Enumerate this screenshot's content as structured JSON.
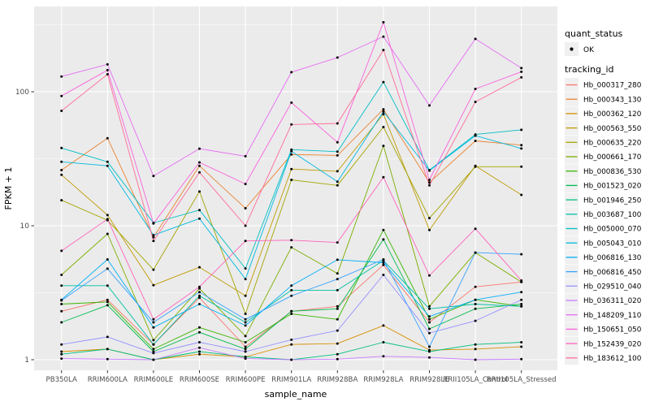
{
  "figure": {
    "kind": "ggplot-style line plot of gene expression per sample",
    "x_axis_title": "sample_name",
    "y_axis_title": "FPKM + 1"
  },
  "chart_data": {
    "type": "line",
    "title": "",
    "xlabel": "sample_name",
    "ylabel": "FPKM + 1",
    "y_scale": "log10",
    "ylim": [
      1,
      420
    ],
    "y_major_ticks": [
      1,
      10,
      100
    ],
    "y_tick_labels": [
      "1",
      "10",
      "100"
    ],
    "y_minor_ticks": [
      3.1623,
      31.623,
      316.23
    ],
    "grid": true,
    "legend_position": "right",
    "panel_bg": "#EBEBEB",
    "grid_color": "#FFFFFF",
    "axis_text_color": "#4D4D4D",
    "point_color": "#000000",
    "legend_key_bg": "#F0F0F0",
    "legend": {
      "quant_status": {
        "title": "quant_status",
        "items": [
          {
            "label": "OK",
            "marker": "black-point"
          }
        ]
      },
      "tracking_id": {
        "title": "tracking_id"
      }
    },
    "categories": [
      "PB350LA",
      "RRIM600LA",
      "RRIM600LE",
      "RRIM600SE",
      "RRIM600PE",
      "RRIM901LA",
      "RRIM928BA",
      "RRIM928LA",
      "RRIM928LE",
      "RRII105LA_Control",
      "RRII105LA_Stressed"
    ],
    "series": [
      {
        "name": "Hb_000317_280",
        "color": "#F8766D",
        "values": [
          2.3,
          2.8,
          1.3,
          2.9,
          1.25,
          2.3,
          2.5,
          5.1,
          1.9,
          3.5,
          3.8
        ]
      },
      {
        "name": "Hb_000343_130",
        "color": "#EA8331",
        "values": [
          26,
          45,
          8.2,
          28,
          13.5,
          34,
          33.5,
          74,
          21,
          43,
          40
        ]
      },
      {
        "name": "Hb_000362_120",
        "color": "#D89000",
        "values": [
          1.15,
          1.2,
          1.0,
          1.1,
          1.05,
          1.3,
          1.32,
          1.8,
          1.18,
          1.2,
          1.25
        ]
      },
      {
        "name": "Hb_000563_550",
        "color": "#C09B00",
        "values": [
          24,
          12,
          3.6,
          4.9,
          3.0,
          26.5,
          25.5,
          68,
          9.3,
          28,
          17
        ]
      },
      {
        "name": "Hb_000635_220",
        "color": "#A3A500",
        "values": [
          15.5,
          11,
          4.7,
          18,
          2.2,
          22,
          20,
          54.5,
          11.4,
          27.6,
          27.6
        ]
      },
      {
        "name": "Hb_000661_170",
        "color": "#7CAE00",
        "values": [
          4.3,
          8.7,
          1.4,
          3.4,
          1.5,
          6.9,
          4.4,
          39.5,
          2.5,
          6.3,
          3.8
        ]
      },
      {
        "name": "Hb_000836_530",
        "color": "#39B600",
        "values": [
          2.6,
          2.7,
          1.2,
          1.74,
          1.35,
          2.2,
          2.0,
          9.3,
          2.0,
          2.8,
          2.5
        ]
      },
      {
        "name": "Hb_001523_020",
        "color": "#00BB4E",
        "values": [
          1.9,
          2.55,
          1.15,
          1.6,
          1.2,
          2.3,
          2.4,
          7.9,
          1.7,
          2.4,
          2.6
        ]
      },
      {
        "name": "Hb_001946_250",
        "color": "#00BF7D",
        "values": [
          1.1,
          1.2,
          1.0,
          1.15,
          1.05,
          1.0,
          1.1,
          1.35,
          1.15,
          1.3,
          1.35
        ]
      },
      {
        "name": "Hb_003687_100",
        "color": "#00C1A3",
        "values": [
          3.57,
          3.57,
          1.3,
          3.0,
          1.9,
          3.3,
          3.3,
          5.5,
          2.4,
          2.6,
          2.5
        ]
      },
      {
        "name": "Hb_005000_070",
        "color": "#00BFC4",
        "values": [
          38,
          30,
          10.5,
          13.1,
          4.8,
          37,
          35.7,
          118,
          26,
          48,
          52
        ]
      },
      {
        "name": "Hb_005043_010",
        "color": "#00BAE0",
        "values": [
          30,
          28,
          8.5,
          11.3,
          4.0,
          36,
          21.3,
          71,
          25.8,
          47,
          37.7
        ]
      },
      {
        "name": "Hb_006816_130",
        "color": "#00B0F6",
        "values": [
          2.8,
          5.6,
          1.74,
          2.6,
          1.8,
          3.57,
          5.57,
          5.3,
          2.1,
          2.8,
          3.2
        ]
      },
      {
        "name": "Hb_006816_450",
        "color": "#35A2FF",
        "values": [
          2.77,
          4.78,
          1.9,
          3.2,
          2.0,
          3.0,
          4.0,
          5.6,
          1.25,
          6.3,
          6.13
        ]
      },
      {
        "name": "Hb_029510_040",
        "color": "#9590FF",
        "values": [
          1.3,
          1.48,
          1.12,
          1.35,
          1.15,
          1.41,
          1.65,
          4.3,
          1.58,
          1.95,
          2.8
        ]
      },
      {
        "name": "Hb_036311_020",
        "color": "#C77CFF",
        "values": [
          1.02,
          1.01,
          1.0,
          1.23,
          1.02,
          1.0,
          1.01,
          1.06,
          1.04,
          1.0,
          1.01
        ]
      },
      {
        "name": "Hb_148209_110",
        "color": "#E76BF3",
        "values": [
          130,
          160,
          23.5,
          37.6,
          33,
          140,
          180,
          258,
          79,
          248,
          150
        ]
      },
      {
        "name": "Hb_150651_050",
        "color": "#FA62DB",
        "values": [
          93,
          145,
          10.4,
          29.7,
          20.5,
          83,
          42,
          330,
          22,
          105,
          141
        ]
      },
      {
        "name": "Hb_152439_020",
        "color": "#FF62BC",
        "values": [
          6.5,
          11.2,
          2.0,
          3.5,
          7.7,
          7.8,
          7.5,
          23,
          4.25,
          9.5,
          3.9
        ]
      },
      {
        "name": "Hb_183612_100",
        "color": "#FF6A98",
        "values": [
          72,
          135,
          7.7,
          25,
          10,
          57,
          58,
          205,
          20,
          84,
          128
        ]
      }
    ]
  }
}
